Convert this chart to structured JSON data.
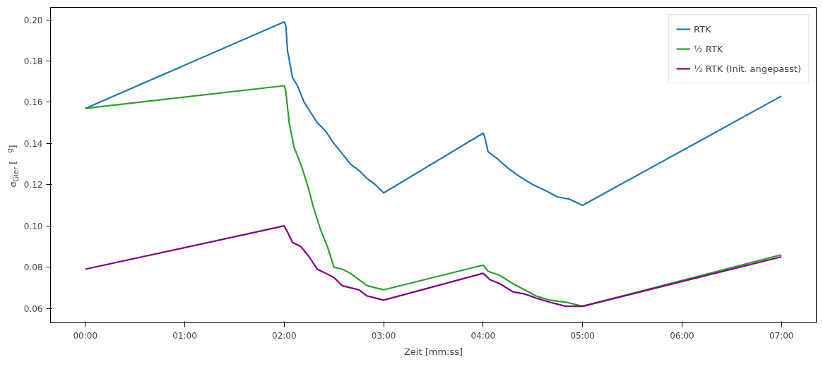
{
  "chart_data": {
    "type": "line",
    "xlabel": "Zeit [mm:ss]",
    "ylabel": "σ$_{Gier}$ [$^{g}$]",
    "xlim": [
      -21,
      441
    ],
    "ylim": [
      0.053,
      0.206
    ],
    "xticks": [
      {
        "value": 0,
        "label": "00:00"
      },
      {
        "value": 60,
        "label": "01:00"
      },
      {
        "value": 120,
        "label": "02:00"
      },
      {
        "value": 180,
        "label": "03:00"
      },
      {
        "value": 240,
        "label": "04:00"
      },
      {
        "value": 300,
        "label": "05:00"
      },
      {
        "value": 360,
        "label": "06:00"
      },
      {
        "value": 420,
        "label": "07:00"
      }
    ],
    "yticks": [
      {
        "value": 0.06,
        "label": "0.06"
      },
      {
        "value": 0.08,
        "label": "0.08"
      },
      {
        "value": 0.1,
        "label": "0.10"
      },
      {
        "value": 0.12,
        "label": "0.12"
      },
      {
        "value": 0.14,
        "label": "0.14"
      },
      {
        "value": 0.16,
        "label": "0.16"
      },
      {
        "value": 0.18,
        "label": "0.18"
      },
      {
        "value": 0.2,
        "label": "0.20"
      }
    ],
    "grid": false,
    "legend": "top right",
    "line_style": "solid",
    "marker": "none",
    "series": [
      {
        "name": "RTK",
        "color": "#1f77b4",
        "x": [
          0,
          120,
          121,
          122,
          125,
          128,
          132,
          136,
          140,
          145,
          150,
          155,
          160,
          165,
          170,
          175,
          180,
          240,
          241,
          243,
          248,
          255,
          262,
          270,
          278,
          285,
          292,
          300,
          420
        ],
        "values": [
          0.157,
          0.199,
          0.197,
          0.185,
          0.172,
          0.168,
          0.16,
          0.155,
          0.15,
          0.146,
          0.14,
          0.135,
          0.13,
          0.127,
          0.123,
          0.12,
          0.116,
          0.145,
          0.143,
          0.136,
          0.133,
          0.128,
          0.124,
          0.12,
          0.117,
          0.114,
          0.113,
          0.11,
          0.163
        ]
      },
      {
        "name": "½ RTK",
        "color": "#2ca02c",
        "x": [
          0,
          120,
          121,
          123,
          126,
          130,
          134,
          138,
          142,
          146,
          150,
          155,
          160,
          165,
          170,
          175,
          180,
          240,
          243,
          250,
          258,
          265,
          272,
          280,
          290,
          300,
          420
        ],
        "values": [
          0.157,
          0.168,
          0.165,
          0.15,
          0.138,
          0.13,
          0.12,
          0.108,
          0.098,
          0.09,
          0.08,
          0.079,
          0.077,
          0.074,
          0.071,
          0.07,
          0.069,
          0.081,
          0.078,
          0.076,
          0.072,
          0.069,
          0.066,
          0.064,
          0.063,
          0.061,
          0.086
        ]
      },
      {
        "name": "½ RTK (Init. angepasst)",
        "color": "#800080",
        "x": [
          0,
          120,
          122,
          125,
          130,
          135,
          140,
          145,
          150,
          155,
          160,
          165,
          170,
          175,
          180,
          240,
          244,
          250,
          258,
          265,
          272,
          280,
          290,
          300,
          420
        ],
        "values": [
          0.079,
          0.1,
          0.097,
          0.092,
          0.09,
          0.085,
          0.079,
          0.077,
          0.075,
          0.071,
          0.07,
          0.069,
          0.066,
          0.065,
          0.064,
          0.077,
          0.074,
          0.072,
          0.068,
          0.067,
          0.065,
          0.063,
          0.061,
          0.061,
          0.085
        ]
      }
    ]
  }
}
